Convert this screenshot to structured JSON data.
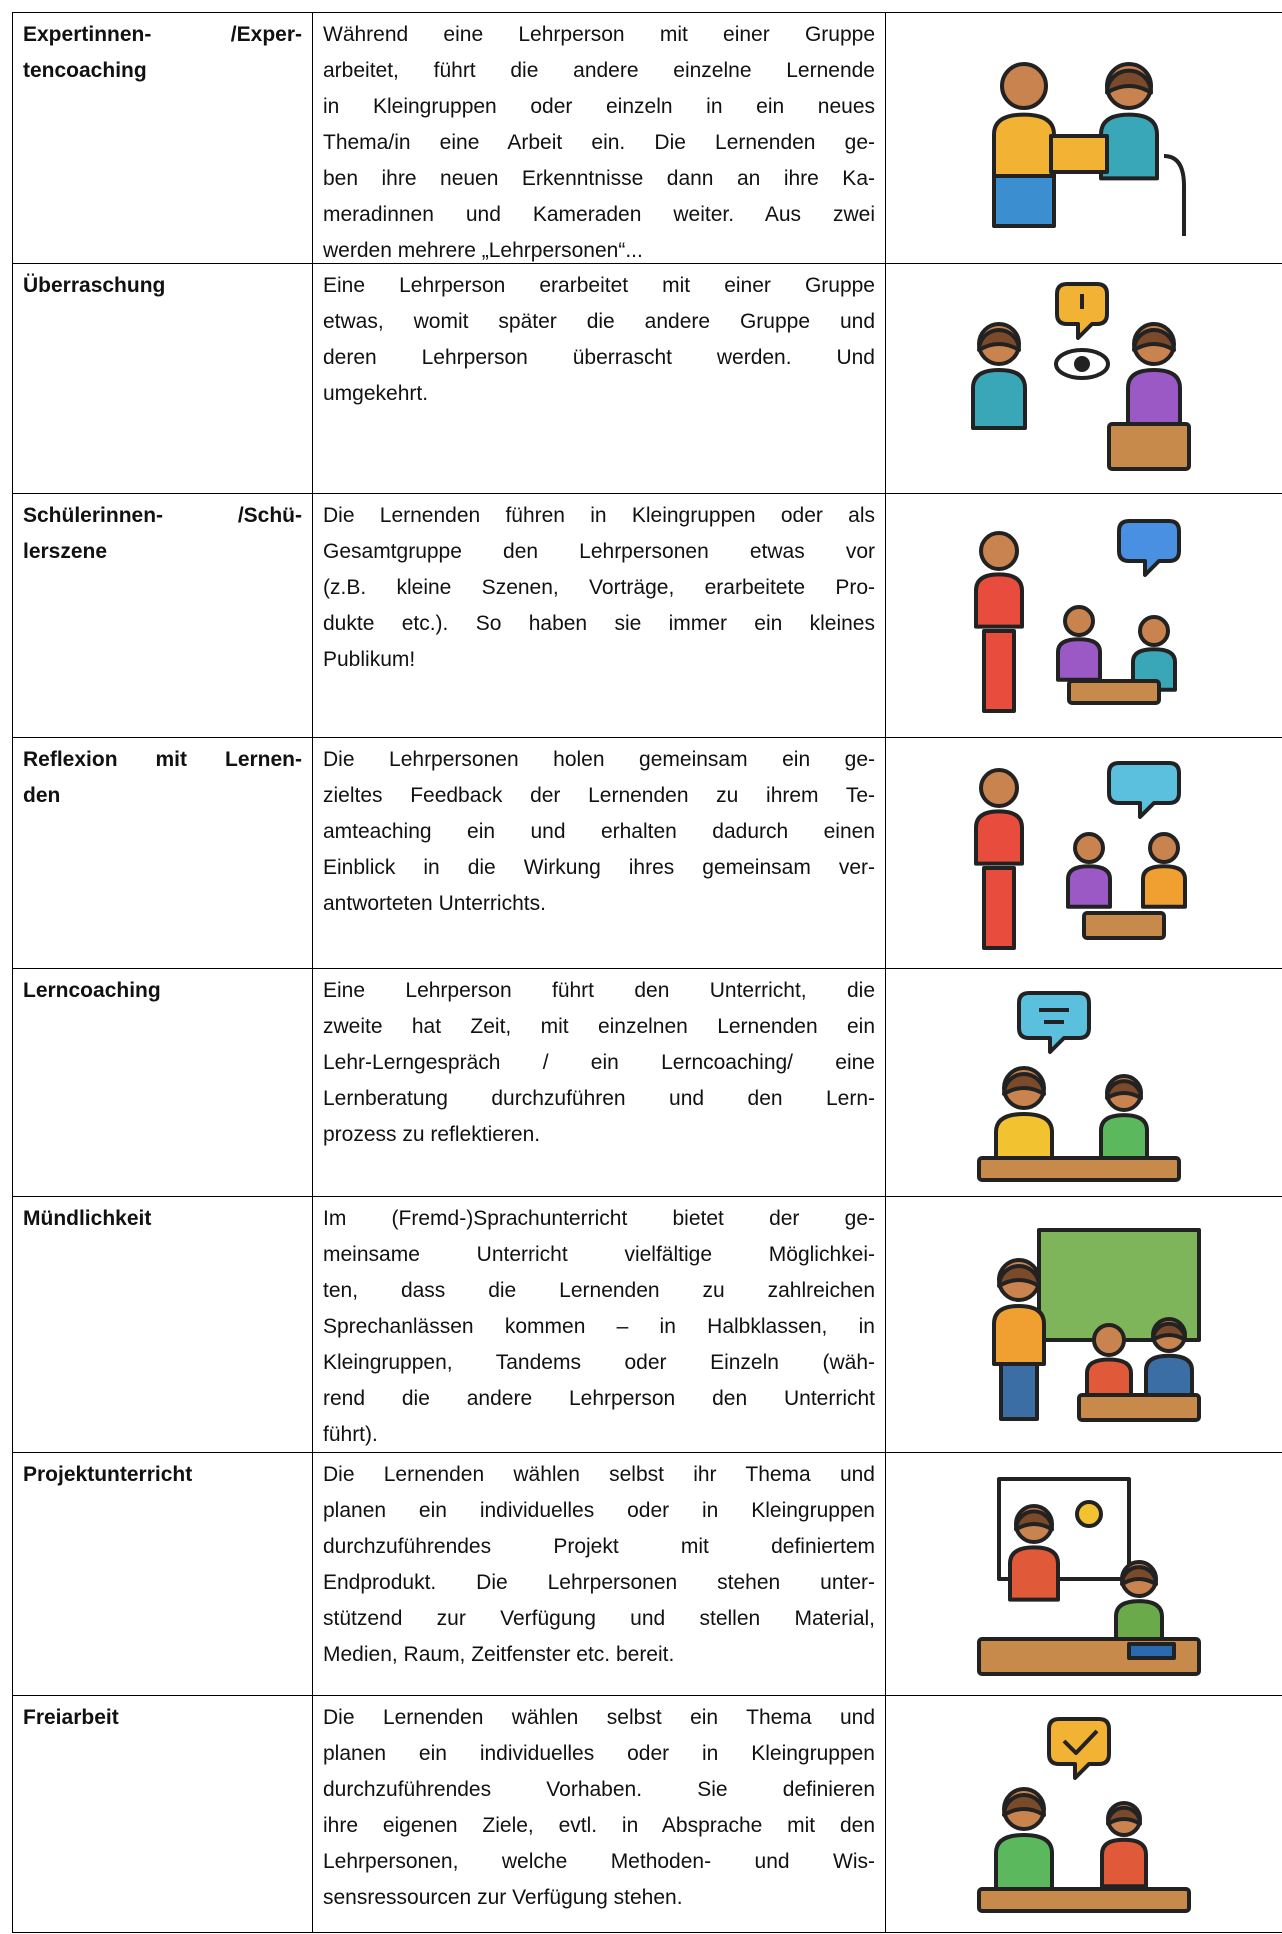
{
  "table": {
    "rows": [
      {
        "term": [
          "Expertinnen- /Exper-",
          "tencoaching"
        ],
        "text": [
          "Während eine Lehrperson mit einer Gruppe",
          "arbeitet, führt die andere einzelne Lernende",
          "in Kleingruppen oder einzeln in ein neues",
          "Thema/in eine Arbeit ein. Die Lernenden ge-",
          "ben ihre neuen Erkenntnisse dann an ihre Ka-",
          "meradinnen und Kameraden weiter. Aus zwei",
          "werden mehrere „Lehrpersonen“..."
        ]
      },
      {
        "term": [
          "Überraschung"
        ],
        "text": [
          "Eine Lehrperson erarbeitet mit einer Gruppe",
          "etwas, womit später die andere Gruppe und",
          "deren Lehrperson überrascht werden. Und",
          "umgekehrt."
        ]
      },
      {
        "term": [
          "Schülerinnen- /Schü-",
          "lerszene"
        ],
        "text": [
          "Die Lernenden führen in Kleingruppen oder als",
          "Gesamtgruppe den Lehrpersonen etwas vor",
          "(z.B. kleine Szenen, Vorträge, erarbeitete Pro-",
          "dukte etc.). So haben sie immer ein kleines",
          "Publikum!"
        ]
      },
      {
        "term": [
          "Reflexion mit Lernen-",
          "den"
        ],
        "text": [
          "Die Lehrpersonen holen gemeinsam ein ge-",
          "zieltes Feedback der Lernenden zu ihrem Te-",
          "amteaching ein und erhalten dadurch einen",
          "Einblick in die Wirkung ihres gemeinsam ver-",
          "antworteten Unterrichts."
        ]
      },
      {
        "term": [
          "Lerncoaching"
        ],
        "text": [
          "Eine Lehrperson führt den Unterricht, die",
          "zweite hat Zeit, mit einzelnen Lernenden ein",
          "Lehr-Lerngespräch / ein Lerncoaching/ eine",
          "Lernberatung durchzuführen und den Lern-",
          "prozess zu reflektieren."
        ]
      },
      {
        "term": [
          "Mündlichkeit"
        ],
        "text": [
          "Im (Fremd-)Sprachunterricht bietet der ge-",
          "meinsame Unterricht vielfältige Möglichkei-",
          "ten, dass die Lernenden zu zahlreichen",
          "Sprechanlässen kommen – in Halbklassen, in",
          "Kleingruppen, Tandems oder Einzeln (wäh-",
          "rend die andere Lehrperson den Unterricht",
          "führt)."
        ]
      },
      {
        "term": [
          "Projektunterricht"
        ],
        "text": [
          "Die Lernenden wählen selbst ihr Thema und",
          "planen ein individuelles oder in Kleingruppen",
          "durchzuführendes Projekt mit definiertem",
          "Endprodukt. Die Lehrpersonen stehen unter-",
          "stützend zur Verfügung und stellen Material,",
          "Medien, Raum, Zeitfenster etc. bereit."
        ]
      },
      {
        "term": [
          "Freiarbeit"
        ],
        "text": [
          "Die Lernenden wählen selbst ein Thema und",
          "planen ein individuelles oder in Kleingruppen",
          "durchzuführendes Vorhaben. Sie definieren",
          "ihre eigenen Ziele, evtl. in Absprache mit den",
          "Lehrpersonen, welche Methoden- und Wis-",
          "sensressourcen zur Verfügung stehen."
        ]
      }
    ]
  }
}
